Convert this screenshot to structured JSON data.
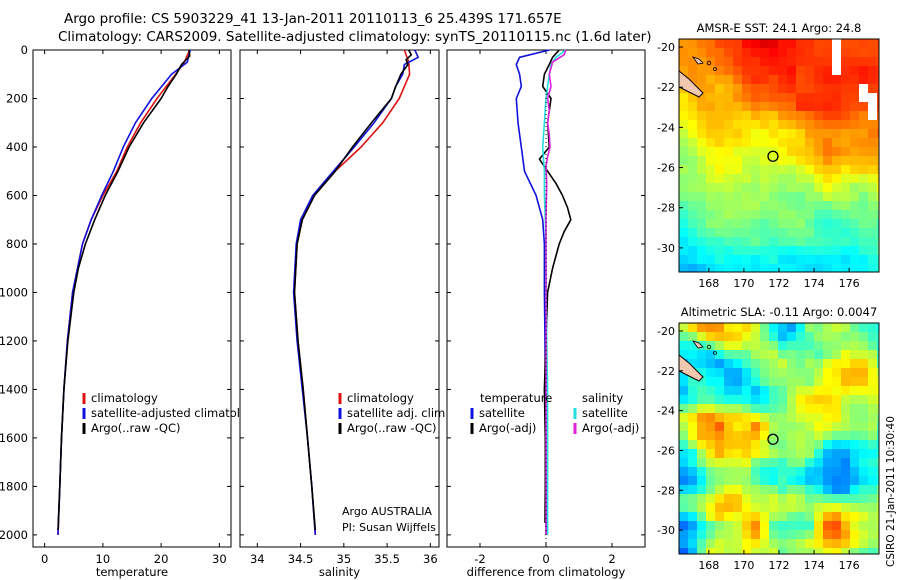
{
  "titles": {
    "line1": "Argo profile: CS 5903229_41 13-Jan-2011 20110113_6 25.439S 171.657E",
    "line2": "Climatology: CARS2009. Satellite-adjusted climatology: synTS_20110115.nc (1.6d later)"
  },
  "credit": "CSIRO 21-Jan-2011 10:30:40",
  "colors": {
    "climatology": "#dd1111",
    "satellite": "#1111dd",
    "argo": "#000000",
    "satellite_salinity": "#22dddd",
    "argo_salinity_adj": "#dd22dd"
  },
  "chart_data": [
    {
      "id": "temperature",
      "type": "line",
      "xlabel": "temperature",
      "ylabel": "",
      "xlim": [
        -2,
        32
      ],
      "ylim": [
        2050,
        0
      ],
      "xticks": [
        0,
        10,
        20,
        30
      ],
      "xtick_labels": [
        "0",
        "10",
        "20",
        "30"
      ],
      "yticks": [
        0,
        200,
        400,
        600,
        800,
        1000,
        1200,
        1400,
        1600,
        1800,
        2000
      ],
      "ytick_labels": [
        "0",
        "200",
        "400",
        "600",
        "800",
        "1000",
        "1200",
        "1400",
        "1600",
        "1800",
        "2000"
      ],
      "legend": [
        "climatology",
        "satellite-adjusted climatology",
        "Argo(..raw -QC)"
      ],
      "legend_position": "lower-right",
      "series": [
        {
          "name": "climatology",
          "color": "#dd1111",
          "depth": [
            0,
            50,
            100,
            200,
            300,
            400,
            500,
            600,
            700,
            800,
            1000,
            1200,
            1400,
            1600,
            1800,
            2000
          ],
          "values": [
            24.9,
            24.0,
            22.5,
            19.3,
            16.5,
            14.2,
            12.4,
            10.0,
            8.0,
            6.5,
            4.8,
            3.9,
            3.3,
            2.9,
            2.6,
            2.3
          ]
        },
        {
          "name": "satellite-adjusted climatology",
          "color": "#1111dd",
          "depth": [
            0,
            50,
            100,
            200,
            300,
            400,
            500,
            600,
            700,
            800,
            1000,
            1200,
            1400,
            1600,
            1800,
            2000
          ],
          "values": [
            25.0,
            24.5,
            21.8,
            18.4,
            15.6,
            13.5,
            11.8,
            9.8,
            8.0,
            6.5,
            4.8,
            3.9,
            3.3,
            2.9,
            2.6,
            2.3
          ]
        },
        {
          "name": "Argo(..raw -QC)",
          "color": "#000000",
          "depth": [
            0,
            25,
            60,
            100,
            150,
            200,
            300,
            400,
            500,
            600,
            700,
            800,
            900,
            1000,
            1200,
            1400,
            1600,
            1800,
            1980
          ],
          "values": [
            24.8,
            24.9,
            23.5,
            22.6,
            21.2,
            20.0,
            17.0,
            14.5,
            12.6,
            10.4,
            8.6,
            7.0,
            5.8,
            5.0,
            4.0,
            3.3,
            2.9,
            2.6,
            2.3
          ]
        }
      ]
    },
    {
      "id": "salinity",
      "type": "line",
      "xlabel": "salinity",
      "ylabel": "",
      "xlim": [
        33.8,
        36.1
      ],
      "ylim": [
        2050,
        0
      ],
      "xticks": [
        34,
        34.5,
        35,
        35.5,
        36
      ],
      "xtick_labels": [
        "34",
        "34.5",
        "35",
        "35.5",
        "36"
      ],
      "legend": [
        "climatology",
        "satellite adj. clim.",
        "Argo(..raw -QC)"
      ],
      "legend_position": "lower-right",
      "annotation": [
        "Argo AUSTRALIA",
        "PI: Susan Wijffels"
      ],
      "series": [
        {
          "name": "climatology",
          "color": "#dd1111",
          "depth": [
            0,
            50,
            100,
            150,
            200,
            300,
            400,
            500,
            600,
            700,
            800,
            1000,
            1200,
            1400,
            1600,
            1800,
            2000
          ],
          "values": [
            35.7,
            35.75,
            35.76,
            35.7,
            35.64,
            35.45,
            35.2,
            34.9,
            34.66,
            34.52,
            34.46,
            34.43,
            34.47,
            34.53,
            34.58,
            34.63,
            34.67
          ]
        },
        {
          "name": "satellite adj. clim.",
          "color": "#1111dd",
          "depth": [
            0,
            30,
            60,
            100,
            150,
            200,
            300,
            400,
            500,
            600,
            700,
            800,
            1000,
            1200,
            1400,
            1600,
            1800,
            2000
          ],
          "values": [
            35.82,
            35.86,
            35.7,
            35.68,
            35.6,
            35.55,
            35.35,
            35.12,
            34.88,
            34.64,
            34.5,
            34.45,
            34.42,
            34.46,
            34.52,
            34.58,
            34.63,
            34.67
          ]
        },
        {
          "name": "Argo(..raw -QC)",
          "color": "#000000",
          "depth": [
            0,
            20,
            40,
            60,
            100,
            150,
            200,
            300,
            400,
            440,
            500,
            600,
            700,
            800,
            1000,
            1200,
            1400,
            1600,
            1800,
            1980
          ],
          "values": [
            35.75,
            35.78,
            35.72,
            35.74,
            35.66,
            35.6,
            35.55,
            35.32,
            35.1,
            35.02,
            34.9,
            34.66,
            34.52,
            34.46,
            34.43,
            34.47,
            34.53,
            34.58,
            34.63,
            34.67
          ]
        }
      ]
    },
    {
      "id": "difference",
      "type": "line",
      "xlabel": "difference from climatology",
      "ylabel": "",
      "xlim": [
        -3,
        3
      ],
      "ylim": [
        2050,
        0
      ],
      "xticks": [
        -2,
        0,
        2
      ],
      "xtick_labels": [
        "-2",
        "0",
        "2"
      ],
      "legend_titles": [
        "temperature",
        "salinity"
      ],
      "legend": [
        "satellite",
        "Argo(-adj)",
        "satellite",
        "Argo(-adj)"
      ],
      "legend_position": "lower-center",
      "series": [
        {
          "name": "temperature satellite",
          "color": "#1111dd",
          "depth": [
            0,
            30,
            60,
            100,
            150,
            200,
            300,
            400,
            500,
            600,
            700,
            800,
            1000,
            1200,
            1400,
            1600,
            1800,
            2000
          ],
          "values": [
            0.1,
            -0.8,
            -0.9,
            -0.8,
            -0.75,
            -0.9,
            -0.85,
            -0.75,
            -0.65,
            -0.3,
            -0.1,
            -0.05,
            -0.05,
            -0.03,
            -0.02,
            -0.01,
            0.0,
            0.0
          ]
        },
        {
          "name": "temperature Argo(-adj)",
          "color": "#000000",
          "depth": [
            0,
            30,
            60,
            100,
            150,
            200,
            300,
            400,
            450,
            500,
            550,
            600,
            650,
            700,
            750,
            800,
            900,
            1000,
            1200,
            1400,
            1600,
            1800,
            1950
          ],
          "values": [
            0.4,
            0.2,
            0.1,
            -0.05,
            -0.1,
            0.15,
            0.05,
            0.1,
            -0.2,
            0.05,
            0.3,
            0.5,
            0.65,
            0.75,
            0.55,
            0.4,
            0.2,
            0.05,
            0.0,
            -0.05,
            -0.02,
            -0.02,
            -0.03
          ]
        },
        {
          "name": "salinity satellite",
          "color": "#22dddd",
          "depth": [
            0,
            30,
            60,
            100,
            150,
            200,
            300,
            400,
            500,
            600,
            700,
            800,
            1000,
            1200,
            1400,
            1600,
            1800,
            2000
          ],
          "values": [
            0.6,
            0.3,
            0.15,
            0.1,
            0.05,
            0.0,
            -0.05,
            -0.1,
            -0.05,
            -0.05,
            -0.02,
            0.0,
            0.0,
            0.02,
            0.05,
            0.05,
            0.05,
            0.05
          ]
        },
        {
          "name": "salinity Argo(-adj)",
          "color": "#dd22dd",
          "depth": [
            0,
            20,
            50,
            100,
            150,
            200,
            250,
            300,
            350,
            400,
            440,
            480,
            550,
            700,
            900,
            1200,
            1600,
            2000
          ],
          "values": [
            0.6,
            0.55,
            0.2,
            0.1,
            0.15,
            0.05,
            0.1,
            0.05,
            0.1,
            0.12,
            0.05,
            0.0,
            0.02,
            0.0,
            0.0,
            0.0,
            0.0,
            0.0
          ]
        }
      ]
    },
    {
      "id": "sst_map",
      "type": "heatmap",
      "title": "AMSR-E SST: 24.1  Argo: 24.8",
      "xlim": [
        166.3,
        177.7
      ],
      "ylim": [
        -31.2,
        -19.6
      ],
      "xticks": [
        168,
        170,
        172,
        174,
        176
      ],
      "xtick_labels": [
        "168",
        "170",
        "172",
        "174",
        "176"
      ],
      "yticks": [
        -20,
        -22,
        -24,
        -26,
        -28,
        -30
      ],
      "ytick_labels": [
        "-20",
        "-22",
        "-24",
        "-26",
        "-28",
        "-30"
      ],
      "marker": {
        "lon": 171.657,
        "lat": -25.439
      }
    },
    {
      "id": "sla_map",
      "type": "heatmap",
      "title": "Altimetric SLA: -0.11  Argo: 0.0047",
      "xlim": [
        166.3,
        177.7
      ],
      "ylim": [
        -31.2,
        -19.6
      ],
      "xticks": [
        168,
        170,
        172,
        174,
        176
      ],
      "xtick_labels": [
        "168",
        "170",
        "172",
        "174",
        "176"
      ],
      "yticks": [
        -20,
        -22,
        -24,
        -26,
        -28,
        -30
      ],
      "ytick_labels": [
        "-20",
        "-22",
        "-24",
        "-26",
        "-28",
        "-30"
      ],
      "marker": {
        "lon": 171.657,
        "lat": -25.439
      }
    }
  ]
}
